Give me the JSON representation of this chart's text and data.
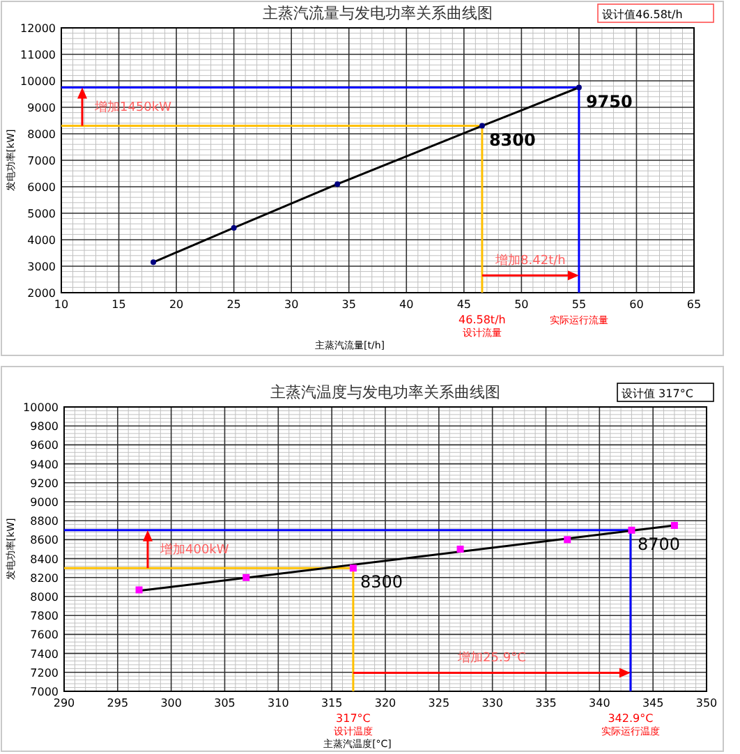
{
  "chart_data": [
    {
      "type": "line",
      "title": "主蒸汽流量与发电功率关系曲线图",
      "xlabel": "主蒸汽流量[t/h]",
      "ylabel": "发电功率[kW]",
      "series": [
        {
          "type": "line",
          "color": "#000000",
          "marker": "circle",
          "x": [
            18,
            25,
            34,
            46.58,
            55
          ],
          "values": [
            3150,
            4450,
            6100,
            8300,
            9750
          ]
        }
      ],
      "xlim": [
        10,
        65
      ],
      "xticks": [
        10,
        15,
        20,
        25,
        30,
        35,
        40,
        45,
        50,
        55,
        60,
        65
      ],
      "ylim": [
        2000,
        12000
      ],
      "yticks": [
        2000,
        3000,
        4000,
        5000,
        6000,
        7000,
        8000,
        9000,
        10000,
        11000,
        12000
      ],
      "grid": true,
      "ref_lines": [
        {
          "axis": "y",
          "value": 8300,
          "label": "8300",
          "color": "#ffc000"
        },
        {
          "axis": "y",
          "value": 9750,
          "label": "9750",
          "color": "#0000ff"
        },
        {
          "axis": "x",
          "value": 46.58,
          "label": "46.58t/h\n设计流量",
          "color": "#ffc000"
        },
        {
          "axis": "x",
          "value": 55,
          "label": "实际运行流量",
          "color": "#0000ff"
        }
      ],
      "annotations": [
        "设计值46.58t/h",
        "增加1450kW",
        "增加8.42t/h"
      ]
    },
    {
      "type": "line",
      "title": "主蒸汽温度与发电功率关系曲线图",
      "xlabel": "主蒸汽温度[°C]",
      "ylabel": "发电功率[kW]",
      "series": [
        {
          "type": "line",
          "color": "#000000",
          "marker": "none",
          "x": [
            297,
            347
          ],
          "values": [
            8060,
            8750
          ]
        },
        {
          "type": "scatter",
          "color": "#ff00ff",
          "marker": "square",
          "x": [
            297,
            307,
            317,
            327,
            337,
            343,
            347
          ],
          "values": [
            8070,
            8200,
            8300,
            8500,
            8600,
            8700,
            8750
          ]
        }
      ],
      "xlim": [
        290,
        350
      ],
      "xticks": [
        290,
        295,
        300,
        305,
        310,
        315,
        320,
        325,
        330,
        335,
        340,
        345,
        350
      ],
      "ylim": [
        7000,
        10000
      ],
      "yticks": [
        7000,
        7200,
        7400,
        7600,
        7800,
        8000,
        8200,
        8400,
        8600,
        8800,
        9000,
        9200,
        9400,
        9600,
        9800,
        10000
      ],
      "grid": true,
      "ref_lines": [
        {
          "axis": "y",
          "value": 8300,
          "label": "8300",
          "color": "#ffc000"
        },
        {
          "axis": "y",
          "value": 8700,
          "label": "8700",
          "color": "#0000ff"
        },
        {
          "axis": "x",
          "value": 317,
          "label": "317°C\n设计温度",
          "color": "#ffc000"
        },
        {
          "axis": "x",
          "value": 342.9,
          "label": "342.9°C\n实际运行温度",
          "color": "#0000ff"
        }
      ],
      "annotations": [
        "设计值 317°C",
        "增加400kW",
        "增加25.9°C"
      ]
    }
  ]
}
